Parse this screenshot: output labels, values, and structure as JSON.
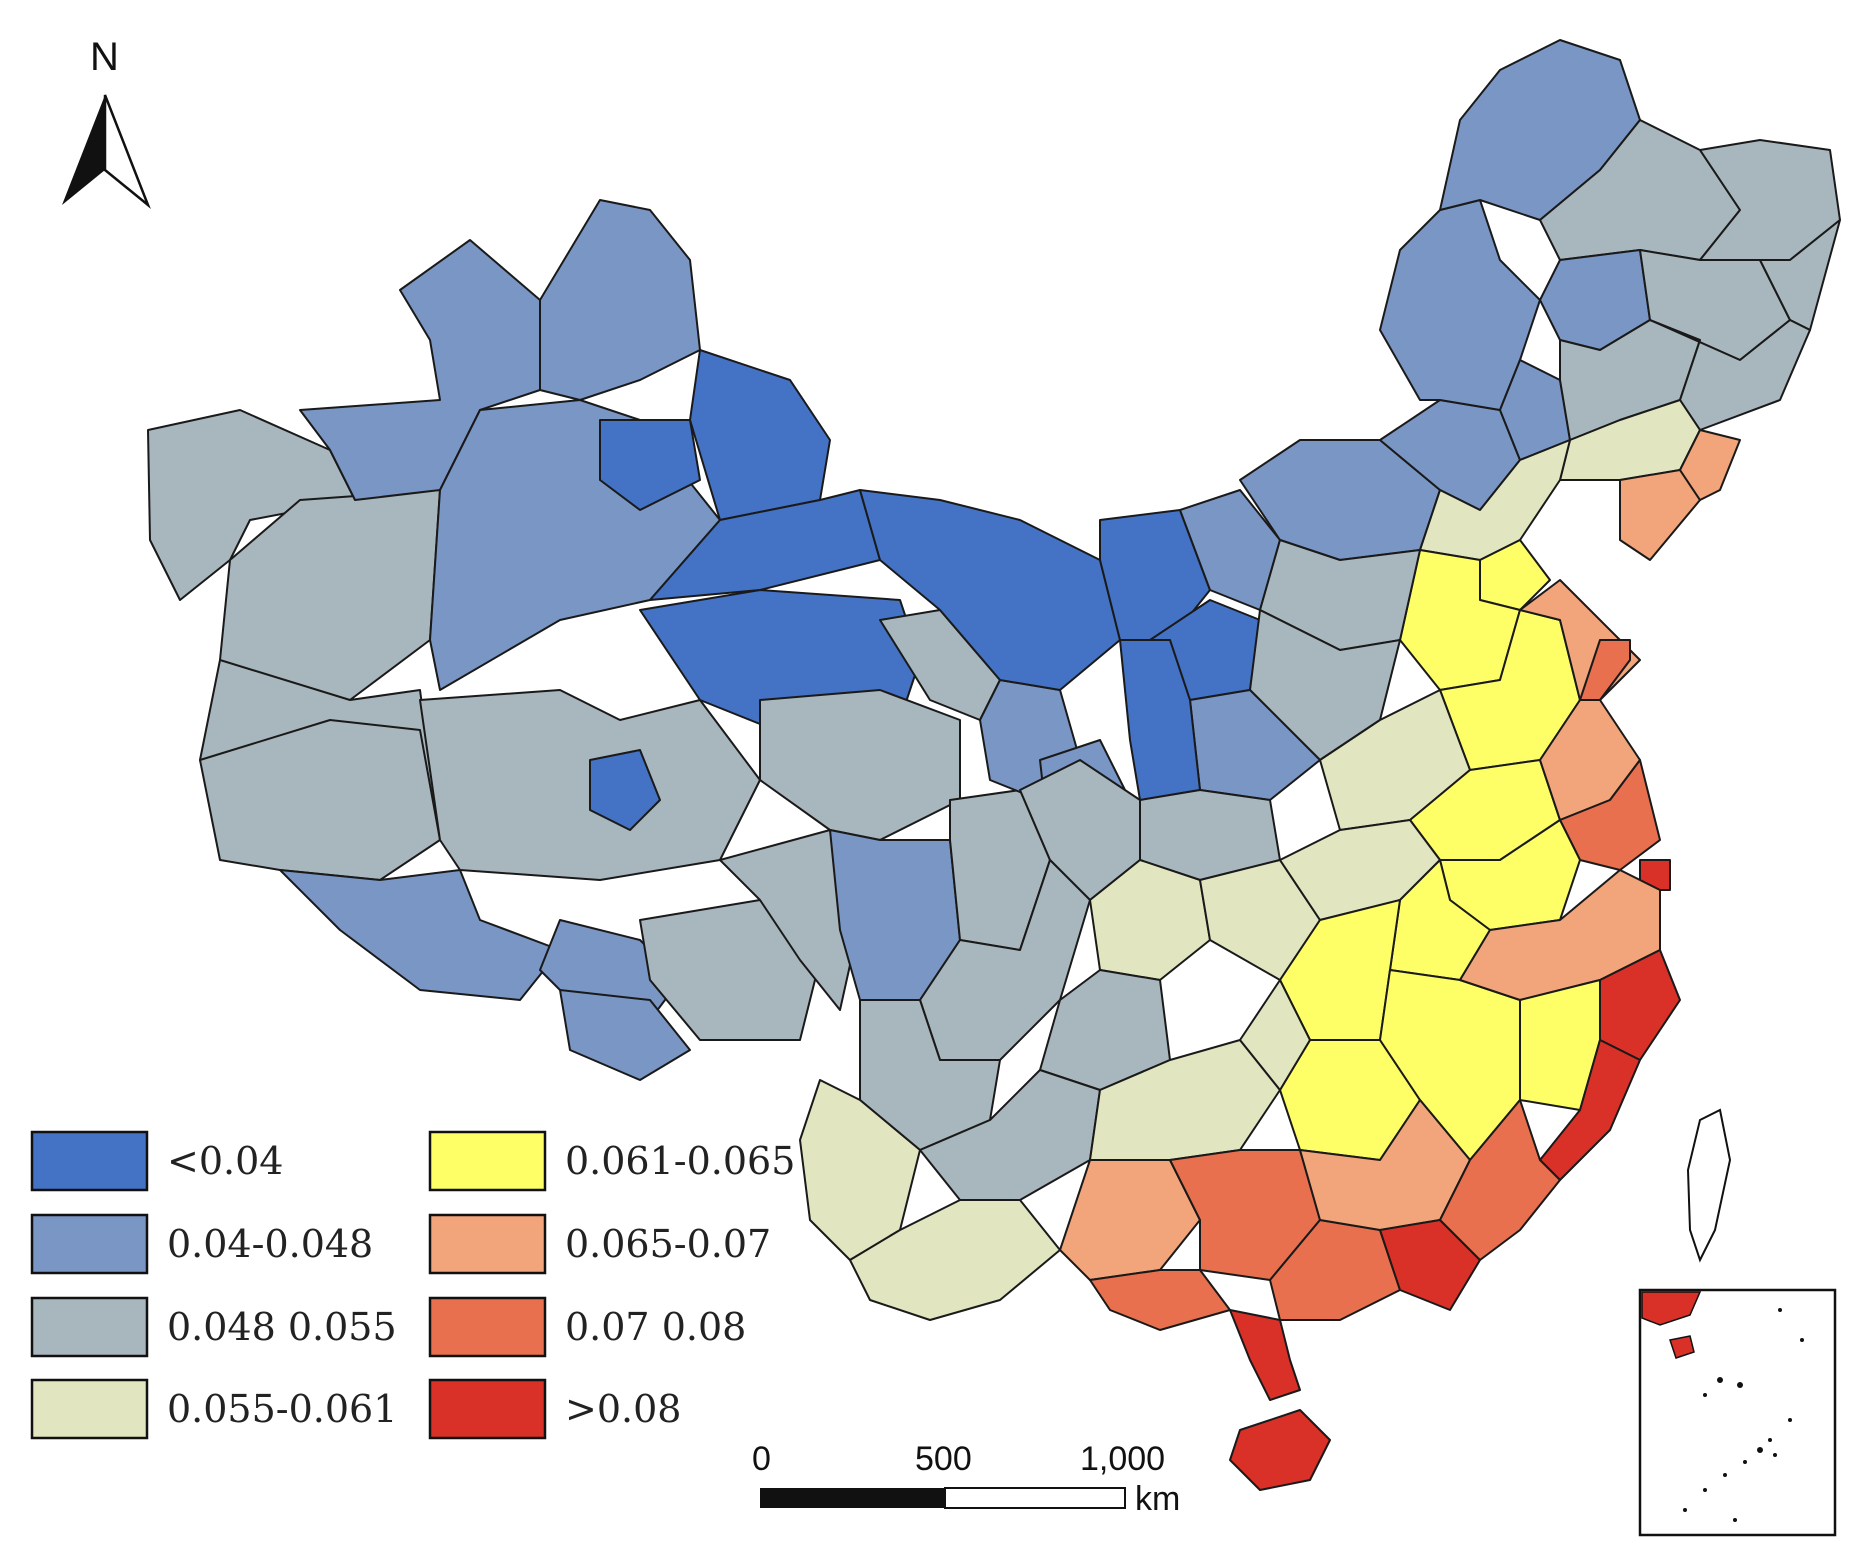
{
  "north_arrow": {
    "label": "N"
  },
  "colors": {
    "c1": "#4472c4",
    "c2": "#7a96c4",
    "c3": "#a8b6bd",
    "c4": "#e2e6c0",
    "c5": "#fefe66",
    "c6": "#f2a47a",
    "c7": "#e8704e",
    "c8": "#d93128",
    "outline": "#1a1a1a"
  },
  "legend": [
    {
      "label": "<0.04",
      "color": "#4472c4"
    },
    {
      "label": "0.04-0.048",
      "color": "#7a96c4"
    },
    {
      "label": "0.048 0.055",
      "color": "#a8b6bd"
    },
    {
      "label": "0.055-0.061",
      "color": "#e2e6c0"
    },
    {
      "label": "0.061-0.065",
      "color": "#fefe66"
    },
    {
      "label": "0.065-0.07",
      "color": "#f2a47a"
    },
    {
      "label": "0.07 0.08",
      "color": "#e8704e"
    },
    {
      "label": ">0.08",
      "color": "#d93128"
    }
  ],
  "scale_bar": {
    "ticks": [
      "0",
      "500",
      "1,000"
    ],
    "unit": "km"
  }
}
